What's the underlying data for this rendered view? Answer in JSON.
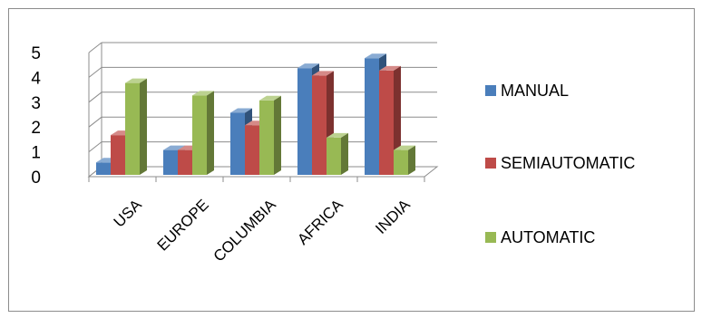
{
  "chart_data": {
    "type": "bar",
    "categories": [
      "USA",
      "EUROPE",
      "COLUMBIA",
      "AFRICA",
      "INDIA"
    ],
    "series": [
      {
        "name": "MANUAL",
        "values": [
          0.5,
          1.0,
          2.5,
          4.3,
          4.7
        ],
        "color": "#4a7ebb"
      },
      {
        "name": "SEMIAUTOMATIC",
        "values": [
          1.6,
          1.0,
          2.0,
          4.0,
          4.2
        ],
        "color": "#be4b48"
      },
      {
        "name": "AUTOMATIC",
        "values": [
          3.7,
          3.2,
          3.0,
          1.5,
          1.0
        ],
        "color": "#98b954"
      }
    ],
    "ylim": [
      0,
      5
    ],
    "yticks": [
      "0",
      "1",
      "2",
      "3",
      "4",
      "5"
    ],
    "grid": true,
    "legend": "right",
    "style": "3d-clustered"
  }
}
